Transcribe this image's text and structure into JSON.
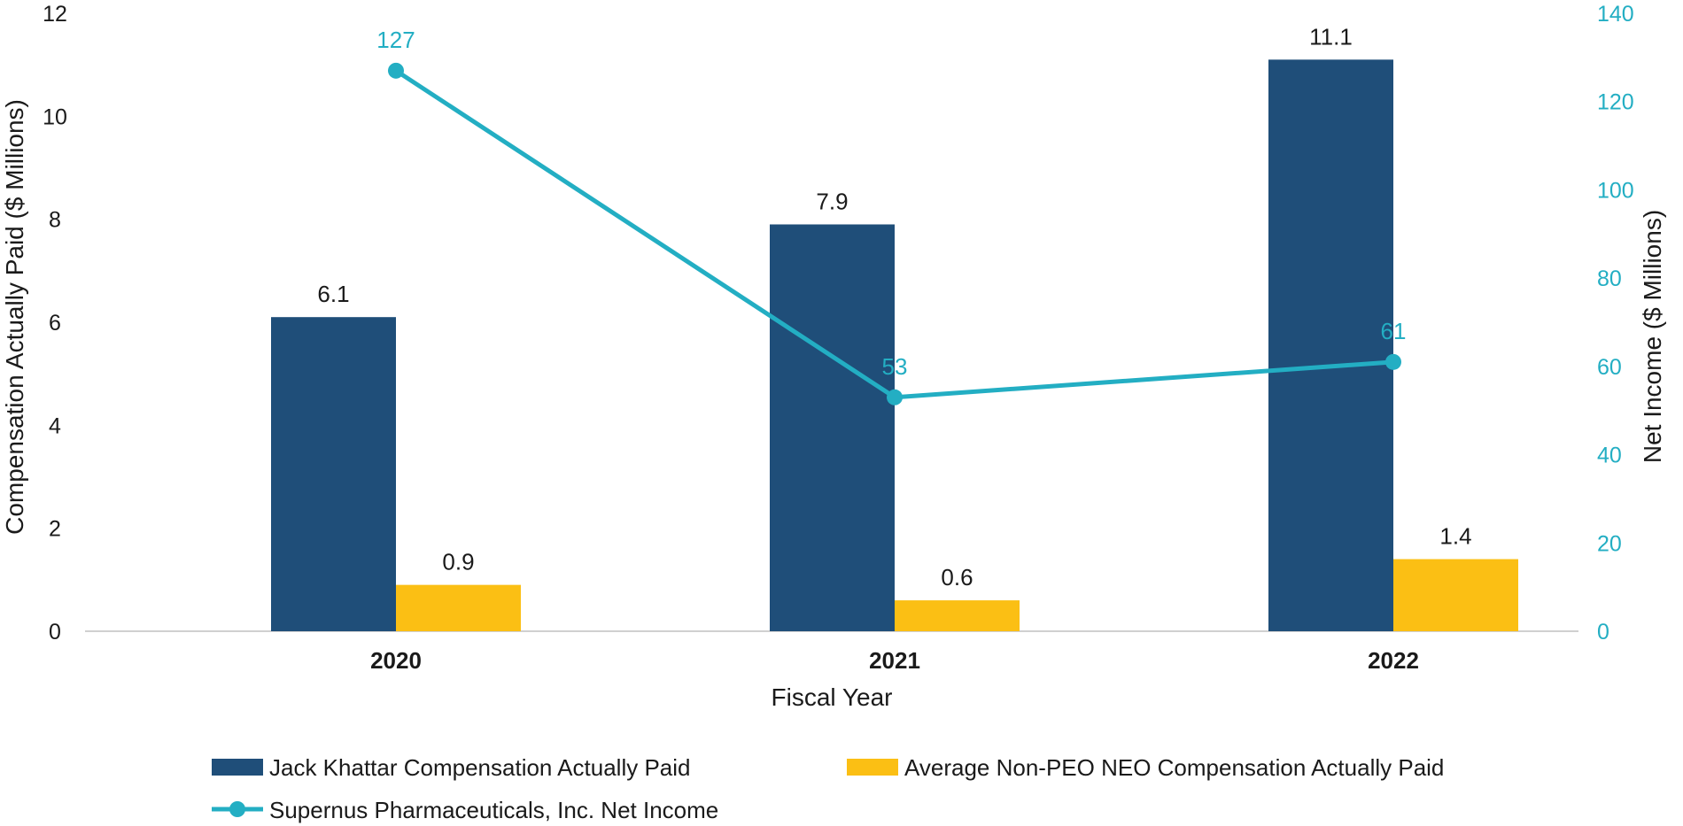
{
  "chart_data": {
    "type": "bar+line",
    "xlabel": "Fiscal Year",
    "categories": [
      "2020",
      "2021",
      "2022"
    ],
    "y_left": {
      "label": "Compensation Actually Paid ($ Millions)",
      "lim": [
        0,
        12
      ],
      "ticks": [
        "0",
        "2",
        "4",
        "6",
        "8",
        "10",
        "12"
      ]
    },
    "y_right": {
      "label": "Net Income ($ Millions)",
      "lim": [
        0,
        140
      ],
      "ticks": [
        "0",
        "20",
        "40",
        "60",
        "80",
        "100",
        "120",
        "140"
      ]
    },
    "series": [
      {
        "name": "Jack Khattar Compensation Actually Paid",
        "kind": "bar",
        "axis": "left",
        "color": "#1f4e79",
        "values": [
          6.1,
          7.9,
          11.1
        ],
        "labels": [
          "6.1",
          "7.9",
          "11.1"
        ]
      },
      {
        "name": "Average Non-PEO NEO Compensation Actually Paid",
        "kind": "bar",
        "axis": "left",
        "color": "#fbbf14",
        "values": [
          0.9,
          0.6,
          1.4
        ],
        "labels": [
          "0.9",
          "0.6",
          "1.4"
        ]
      },
      {
        "name": "Supernus Pharmaceuticals, Inc. Net Income",
        "kind": "line",
        "axis": "right",
        "color": "#23aec3",
        "values": [
          127,
          53,
          61
        ],
        "labels": [
          "127",
          "53",
          "61"
        ]
      }
    ],
    "legend_position": "bottom",
    "colors": {
      "left_axis_text": "#1a1a1a",
      "right_axis_text": "#23aec3",
      "axis_line": "#d0d0d0"
    }
  }
}
